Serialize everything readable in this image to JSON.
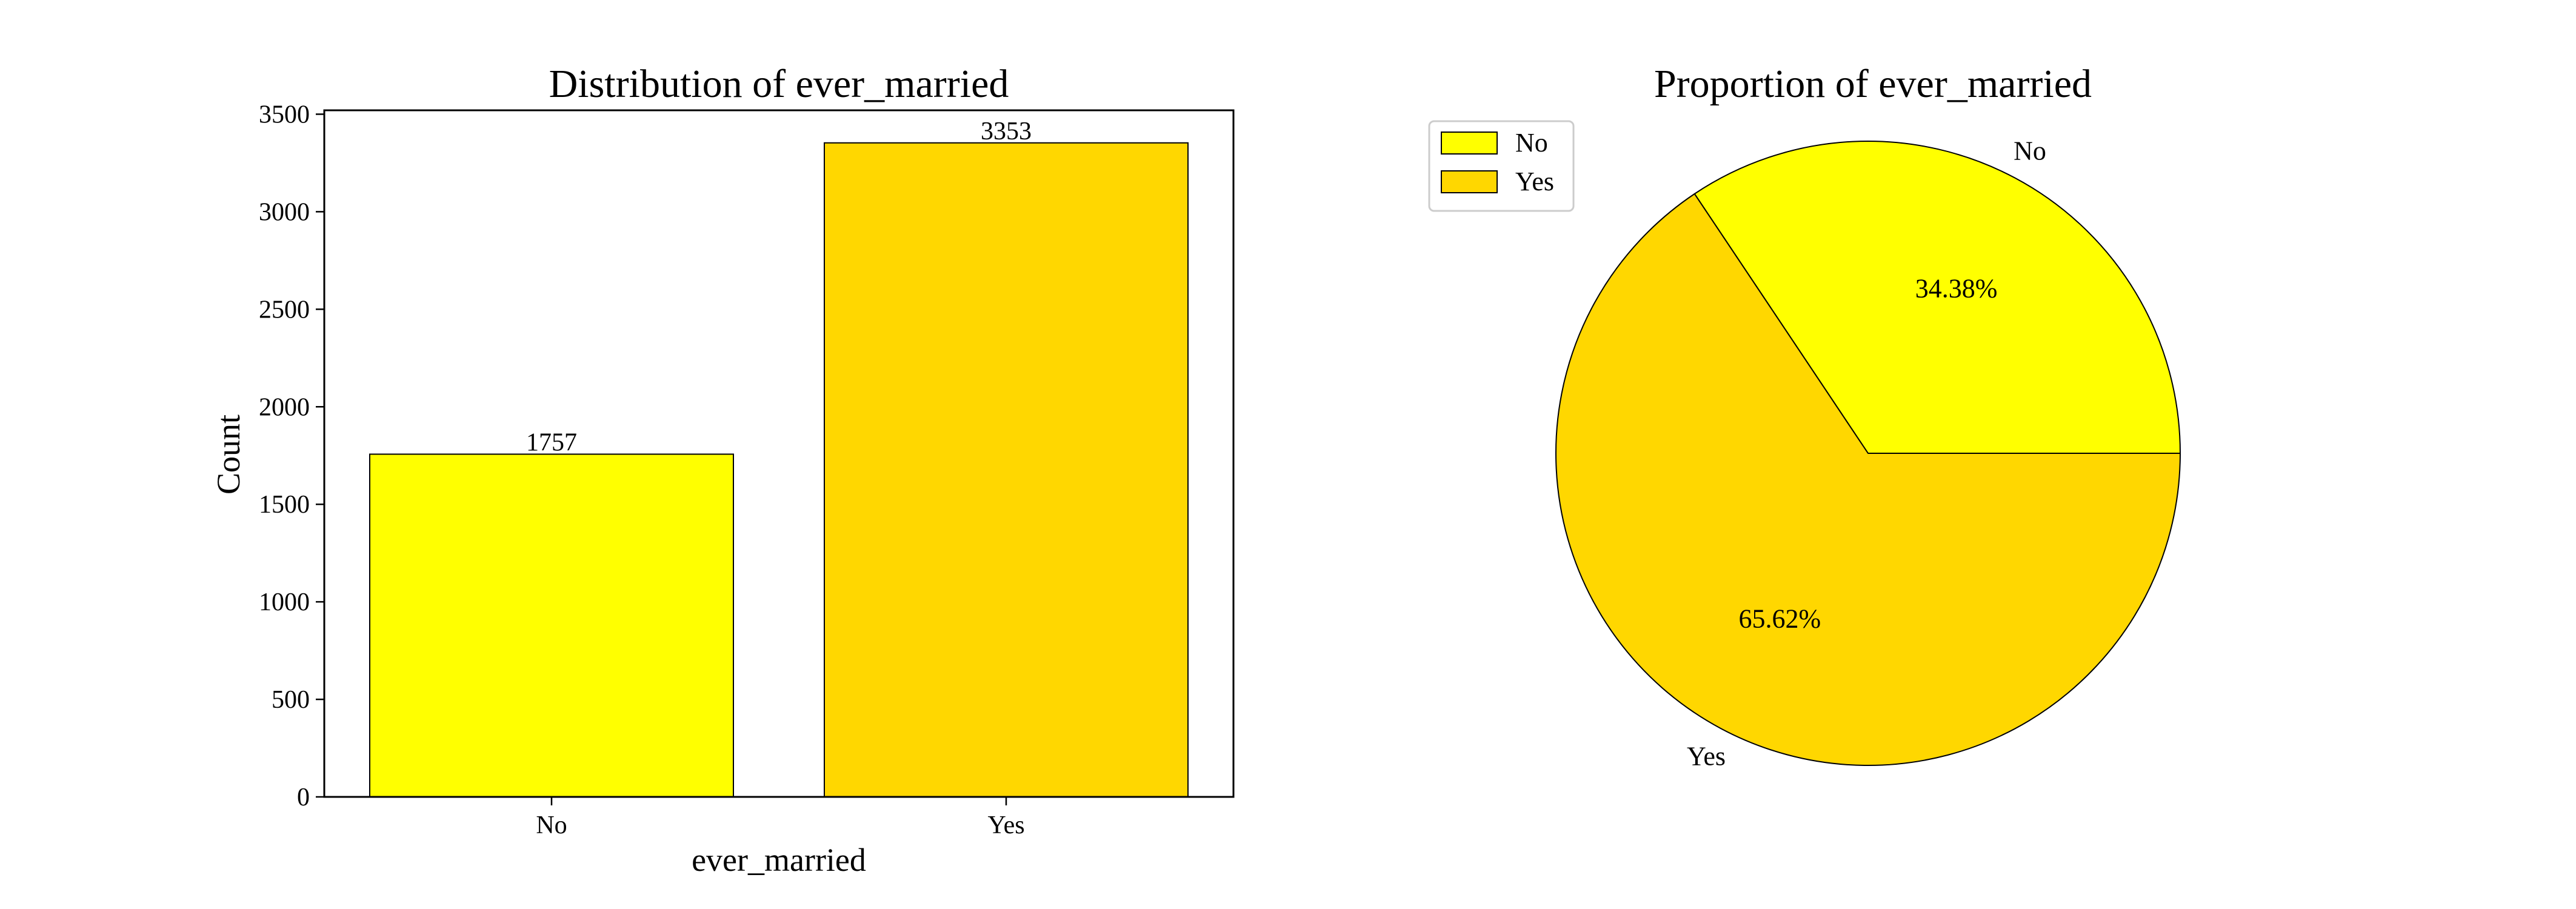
{
  "chart_data": [
    {
      "type": "bar",
      "title": "Distribution of ever_married",
      "xlabel": "ever_married",
      "ylabel": "Count",
      "categories": [
        "No",
        "Yes"
      ],
      "values": [
        1757,
        3353
      ],
      "data_labels": [
        "1757",
        "3353"
      ],
      "colors": [
        "#FFFF00",
        "#FFD700"
      ],
      "ylim": [
        0,
        3520
      ],
      "yticks": [
        0,
        500,
        1000,
        1500,
        2000,
        2500,
        3000,
        3500
      ],
      "ytick_labels": [
        "0",
        "500",
        "1000",
        "1500",
        "2000",
        "2500",
        "3000",
        "3500"
      ],
      "grid": false
    },
    {
      "type": "pie",
      "title": "Proportion of ever_married",
      "categories": [
        "No",
        "Yes"
      ],
      "values": [
        34.38,
        65.62
      ],
      "pct_labels": [
        "34.38%",
        "65.62%"
      ],
      "colors": [
        "#FFFF00",
        "#FFD700"
      ],
      "legend": [
        "No",
        "Yes"
      ],
      "legend_position": "top-left"
    }
  ]
}
